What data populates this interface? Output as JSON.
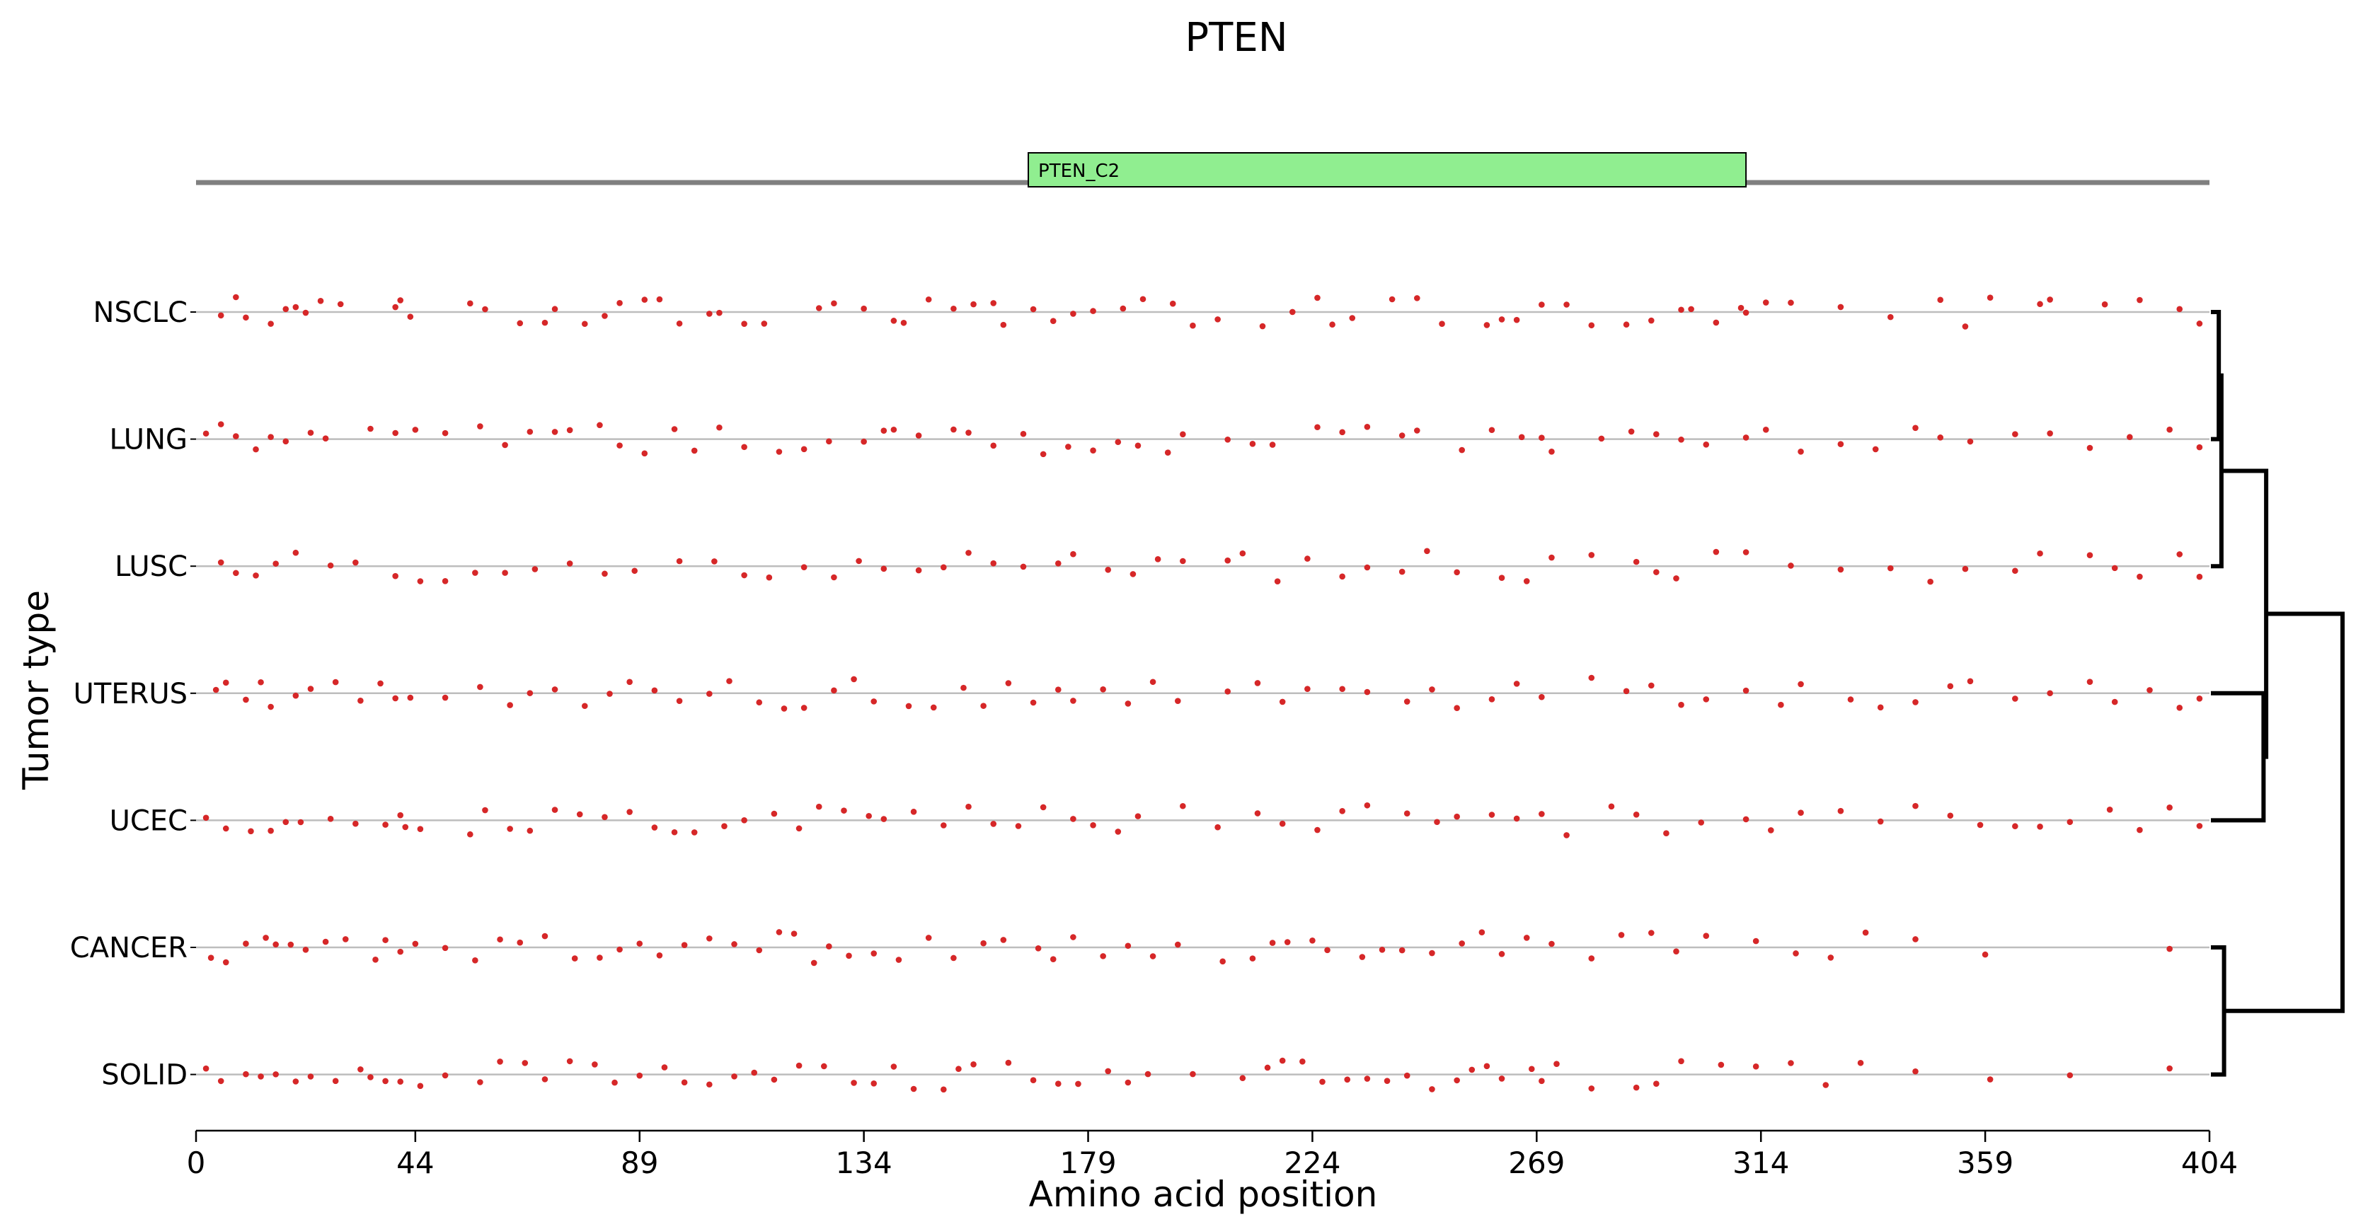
{
  "chart_data": {
    "type": "scatter",
    "title": "PTEN",
    "xlabel": "Amino acid position",
    "ylabel": "Tumor type",
    "xlim": [
      0,
      404
    ],
    "xticks": [
      0,
      44,
      89,
      134,
      179,
      224,
      269,
      314,
      359,
      404
    ],
    "rows": [
      "NSCLC",
      "LUNG",
      "LUSC",
      "UTERUS",
      "UCEC",
      "CANCER",
      "SOLID"
    ],
    "protein": {
      "length": 404,
      "domains": [
        {
          "name": "PTEN_C2",
          "start": 167,
          "end": 311,
          "color": "#90ee90"
        }
      ]
    },
    "mutation_color": "#d62728",
    "dendrogram": {
      "leaf_order": [
        "NSCLC",
        "LUNG",
        "LUSC",
        "UTERUS",
        "UCEC",
        "CANCER",
        "SOLID"
      ],
      "links": [
        {
          "a": "NSCLC",
          "b": "LUNG",
          "height": 0.06
        },
        {
          "a": "NSCLC+LUNG",
          "b": "LUSC",
          "height": 0.08
        },
        {
          "a": "UTERUS",
          "b": "UCEC",
          "height": 0.4
        },
        {
          "a": "NSCLC+LUNG+LUSC",
          "b": "UTERUS+UCEC",
          "height": 0.42
        },
        {
          "a": "CANCER",
          "b": "SOLID",
          "height": 0.1
        },
        {
          "a": "NSCLC+LUNG+LUSC+UTERUS+UCEC",
          "b": "CANCER+SOLID",
          "height": 1.0
        }
      ]
    },
    "mutations": {
      "NSCLC": [
        5,
        8,
        10,
        15,
        18,
        20,
        22,
        25,
        29,
        40,
        41,
        43,
        55,
        58,
        65,
        70,
        72,
        78,
        82,
        85,
        90,
        93,
        97,
        103,
        105,
        110,
        114,
        125,
        128,
        134,
        140,
        142,
        147,
        152,
        156,
        160,
        162,
        168,
        172,
        176,
        180,
        186,
        190,
        196,
        200,
        205,
        214,
        220,
        225,
        228,
        232,
        240,
        245,
        250,
        259,
        262,
        265,
        270,
        275,
        280,
        287,
        292,
        298,
        300,
        305,
        310,
        311,
        315,
        320,
        330,
        340,
        350,
        355,
        360,
        370,
        372,
        383,
        390,
        398,
        402
      ],
      "LUNG": [
        2,
        5,
        8,
        12,
        15,
        18,
        23,
        26,
        35,
        40,
        44,
        50,
        57,
        62,
        67,
        72,
        75,
        81,
        85,
        90,
        96,
        100,
        105,
        110,
        117,
        122,
        127,
        134,
        138,
        140,
        145,
        152,
        155,
        160,
        166,
        170,
        175,
        180,
        185,
        189,
        195,
        198,
        207,
        212,
        216,
        225,
        230,
        235,
        242,
        245,
        254,
        260,
        266,
        270,
        272,
        282,
        288,
        293,
        298,
        303,
        311,
        315,
        322,
        330,
        337,
        345,
        350,
        356,
        365,
        372,
        380,
        388,
        396,
        402
      ],
      "LUSC": [
        5,
        8,
        12,
        16,
        20,
        27,
        32,
        40,
        45,
        50,
        56,
        62,
        68,
        75,
        82,
        88,
        97,
        104,
        110,
        115,
        122,
        128,
        133,
        138,
        145,
        150,
        155,
        160,
        166,
        173,
        176,
        183,
        188,
        193,
        198,
        207,
        210,
        217,
        223,
        230,
        235,
        242,
        247,
        253,
        262,
        267,
        272,
        280,
        289,
        293,
        297,
        305,
        311,
        320,
        330,
        340,
        348,
        355,
        365,
        370,
        380,
        385,
        390,
        398,
        402
      ],
      "UTERUS": [
        4,
        6,
        10,
        13,
        15,
        20,
        23,
        28,
        33,
        37,
        40,
        43,
        50,
        57,
        63,
        67,
        72,
        78,
        83,
        87,
        92,
        97,
        103,
        107,
        113,
        118,
        122,
        128,
        132,
        136,
        143,
        148,
        154,
        158,
        163,
        168,
        173,
        176,
        182,
        187,
        192,
        197,
        207,
        213,
        218,
        223,
        230,
        235,
        243,
        248,
        253,
        260,
        265,
        270,
        280,
        287,
        292,
        298,
        303,
        311,
        318,
        322,
        332,
        338,
        345,
        352,
        356,
        365,
        372,
        380,
        385,
        392,
        398,
        402
      ],
      "UCEC": [
        2,
        6,
        11,
        15,
        18,
        21,
        27,
        32,
        38,
        41,
        42,
        45,
        55,
        58,
        63,
        67,
        72,
        77,
        82,
        87,
        92,
        96,
        100,
        106,
        110,
        116,
        121,
        125,
        130,
        135,
        138,
        144,
        150,
        155,
        160,
        165,
        170,
        176,
        180,
        185,
        189,
        198,
        205,
        213,
        218,
        225,
        230,
        235,
        243,
        249,
        253,
        260,
        265,
        270,
        275,
        284,
        289,
        295,
        302,
        311,
        316,
        322,
        330,
        338,
        345,
        352,
        358,
        365,
        370,
        376,
        384,
        390,
        396,
        402
      ],
      "CANCER": [
        3,
        6,
        10,
        14,
        16,
        19,
        22,
        26,
        30,
        36,
        38,
        41,
        44,
        50,
        56,
        61,
        65,
        70,
        76,
        81,
        85,
        89,
        93,
        98,
        103,
        108,
        113,
        117,
        120,
        124,
        127,
        131,
        136,
        141,
        147,
        152,
        158,
        162,
        169,
        172,
        176,
        182,
        187,
        192,
        197,
        206,
        212,
        216,
        219,
        224,
        227,
        234,
        238,
        242,
        248,
        254,
        258,
        262,
        267,
        272,
        280,
        286,
        292,
        297,
        303,
        313,
        321,
        328,
        335,
        345,
        359,
        396
      ],
      "SOLID": [
        2,
        5,
        10,
        13,
        16,
        20,
        23,
        28,
        33,
        35,
        38,
        41,
        45,
        50,
        57,
        61,
        66,
        70,
        75,
        80,
        84,
        89,
        94,
        98,
        103,
        108,
        112,
        116,
        121,
        126,
        132,
        136,
        140,
        144,
        150,
        153,
        156,
        163,
        168,
        173,
        177,
        183,
        187,
        191,
        200,
        210,
        215,
        218,
        222,
        226,
        231,
        235,
        239,
        243,
        248,
        253,
        256,
        259,
        262,
        268,
        270,
        273,
        280,
        289,
        293,
        298,
        306,
        313,
        320,
        327,
        334,
        345,
        360,
        376,
        396
      ]
    }
  }
}
